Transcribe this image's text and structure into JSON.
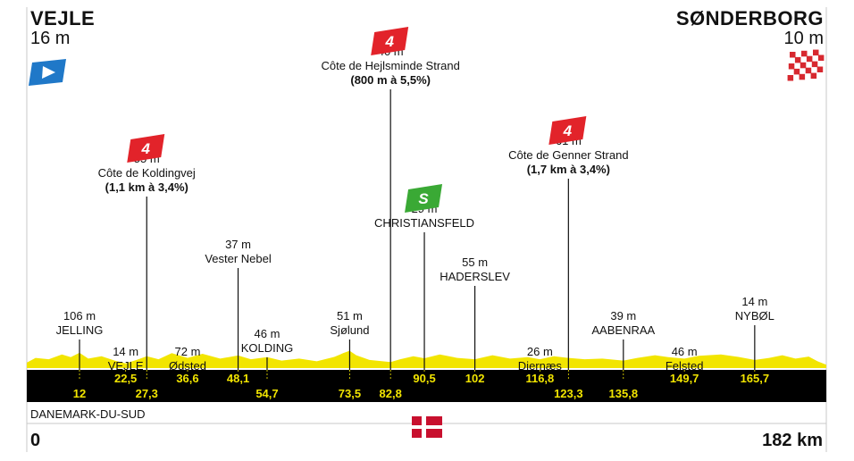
{
  "stage": {
    "start": {
      "city": "VEJLE",
      "altitude": "16 m"
    },
    "finish": {
      "city": "SØNDERBORG",
      "altitude": "10 m"
    },
    "region": "DANEMARK-DU-SUD",
    "scale_start": "0",
    "scale_end": "182 km"
  },
  "colors": {
    "profile_fill": "#f2e500",
    "band": "#000000",
    "km_text": "#f2e500",
    "climb_flag": "#e2232a",
    "sprint_flag": "#3aa935",
    "start_flag": "#1f78c8",
    "finish_flag": "#d7282f",
    "denmark_red": "#c8102e"
  },
  "chart_data": {
    "type": "area",
    "x_unit": "km",
    "xlim": [
      0,
      182
    ],
    "ylim": [
      0,
      110
    ],
    "profile": {
      "x": [
        0,
        2,
        5,
        8,
        10,
        12,
        14,
        17,
        20,
        22.5,
        25,
        27.3,
        30,
        33,
        36.6,
        40,
        44,
        48.1,
        51,
        54.7,
        58,
        62,
        66,
        70,
        72,
        73.5,
        75,
        78,
        82.8,
        85,
        88,
        90.5,
        94,
        98,
        102,
        106,
        110,
        114,
        116.8,
        120,
        123.3,
        127,
        131,
        135.8,
        139,
        143,
        146,
        149.7,
        153,
        158,
        162,
        165.7,
        169,
        172,
        175,
        178,
        180,
        182
      ],
      "y": [
        16,
        30,
        26,
        40,
        32,
        45,
        28,
        35,
        22,
        14,
        24,
        35,
        26,
        44,
        30,
        42,
        28,
        37,
        26,
        32,
        22,
        28,
        20,
        33,
        44,
        51,
        38,
        24,
        18,
        26,
        35,
        29,
        40,
        30,
        26,
        38,
        28,
        32,
        26,
        35,
        30,
        26,
        28,
        22,
        30,
        38,
        32,
        28,
        36,
        40,
        33,
        24,
        30,
        38,
        28,
        34,
        20,
        10
      ]
    },
    "km_markers": [
      {
        "km": 12,
        "label": "12",
        "row": "bottom"
      },
      {
        "km": 22.5,
        "label": "22,5",
        "row": "top"
      },
      {
        "km": 27.3,
        "label": "27,3",
        "row": "bottom"
      },
      {
        "km": 36.6,
        "label": "36,6",
        "row": "top"
      },
      {
        "km": 48.1,
        "label": "48,1",
        "row": "top"
      },
      {
        "km": 54.7,
        "label": "54,7",
        "row": "bottom"
      },
      {
        "km": 73.5,
        "label": "73,5",
        "row": "bottom"
      },
      {
        "km": 82.8,
        "label": "82,8",
        "row": "bottom"
      },
      {
        "km": 90.5,
        "label": "90,5",
        "row": "top"
      },
      {
        "km": 102,
        "label": "102",
        "row": "top"
      },
      {
        "km": 116.8,
        "label": "116,8",
        "row": "top"
      },
      {
        "km": 123.3,
        "label": "123,3",
        "row": "bottom"
      },
      {
        "km": 135.8,
        "label": "135,8",
        "row": "bottom"
      },
      {
        "km": 149.7,
        "label": "149,7",
        "row": "top"
      },
      {
        "km": 165.7,
        "label": "165,7",
        "row": "top"
      }
    ],
    "waypoints": [
      {
        "km": 12,
        "lines": [
          "106 m",
          "JELLING"
        ],
        "bold": "",
        "flag": "",
        "tier": 8
      },
      {
        "km": 22.5,
        "lines": [
          "14 m",
          "VEJLE"
        ],
        "bold": "",
        "flag": "",
        "tier": 9
      },
      {
        "km": 27.3,
        "lines": [
          "55 m",
          "Côte de Koldingvej"
        ],
        "bold": "(1,1 km à 3,4%)",
        "flag": "4",
        "flag_type": "climb",
        "tier": 4
      },
      {
        "km": 36.6,
        "lines": [
          "72 m",
          "Ødsted"
        ],
        "bold": "",
        "flag": "",
        "tier": 9
      },
      {
        "km": 48.1,
        "lines": [
          "37 m",
          "Vester Nebel"
        ],
        "bold": "",
        "flag": "",
        "tier": 6
      },
      {
        "km": 54.7,
        "lines": [
          "46 m",
          "KOLDING"
        ],
        "bold": "",
        "flag": "",
        "tier": 8.5
      },
      {
        "km": 73.5,
        "lines": [
          "51 m",
          "Sjølund"
        ],
        "bold": "",
        "flag": "",
        "tier": 8
      },
      {
        "km": 82.8,
        "lines": [
          "40 m",
          "Côte de Hejlsminde Strand"
        ],
        "bold": "(800 m à 5,5%)",
        "flag": "4",
        "flag_type": "climb",
        "tier": 1
      },
      {
        "km": 90.5,
        "lines": [
          "29 m",
          "CHRISTIANSFELD"
        ],
        "bold": "",
        "flag": "S",
        "flag_type": "sprint",
        "tier": 5
      },
      {
        "km": 102,
        "lines": [
          "55 m",
          "HADERSLEV"
        ],
        "bold": "",
        "flag": "",
        "tier": 6.5
      },
      {
        "km": 116.8,
        "lines": [
          "26 m",
          "Diernæs"
        ],
        "bold": "",
        "flag": "",
        "tier": 9
      },
      {
        "km": 123.3,
        "lines": [
          "61 m",
          "Côte de Genner Strand"
        ],
        "bold": "(1,7 km à 3,4%)",
        "flag": "4",
        "flag_type": "climb",
        "tier": 3.5
      },
      {
        "km": 135.8,
        "lines": [
          "39 m",
          "AABENRAA"
        ],
        "bold": "",
        "flag": "",
        "tier": 8
      },
      {
        "km": 149.7,
        "lines": [
          "46 m",
          "Felsted"
        ],
        "bold": "",
        "flag": "",
        "tier": 9
      },
      {
        "km": 165.7,
        "lines": [
          "14 m",
          "NYBØL"
        ],
        "bold": "",
        "flag": "",
        "tier": 7.6
      }
    ]
  }
}
